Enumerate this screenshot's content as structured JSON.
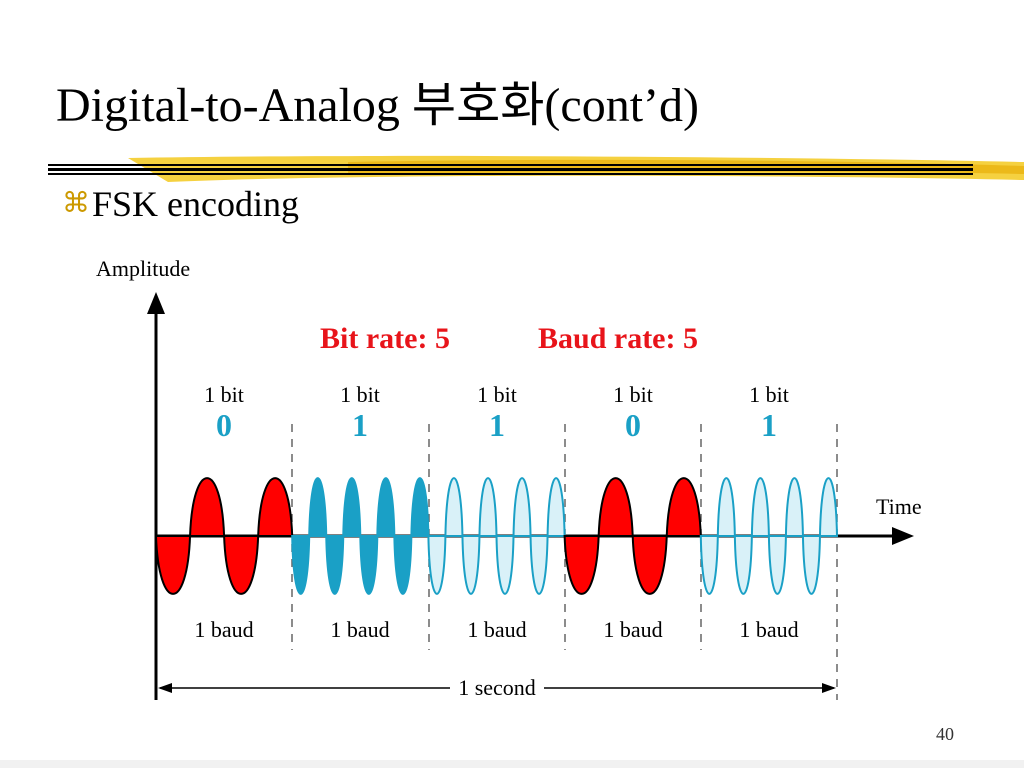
{
  "slide": {
    "title": "Digital-to-Analog 부호화(cont’d)",
    "bullet": "FSK encoding",
    "bullet_icon": "command-key-icon",
    "page_number": "40"
  },
  "diagram": {
    "y_axis_label": "Amplitude",
    "x_axis_label": "Time",
    "bit_rate_label": "Bit rate: 5",
    "baud_rate_label": "Baud rate: 5",
    "duration_label": "1 second",
    "bits": [
      {
        "bit_label": "1 bit",
        "value": "0",
        "baud_label": "1 baud"
      },
      {
        "bit_label": "1 bit",
        "value": "1",
        "baud_label": "1 baud"
      },
      {
        "bit_label": "1 bit",
        "value": "1",
        "baud_label": "1 baud"
      },
      {
        "bit_label": "1 bit",
        "value": "0",
        "baud_label": "1 baud"
      },
      {
        "bit_label": "1 bit",
        "value": "1",
        "baud_label": "1 baud"
      }
    ],
    "colors": {
      "rate_text": "#e8141a",
      "bit_value_text": "#1aa0c6",
      "zero_fill": "#ff0000",
      "one_fill_dark": "#1aa0c6",
      "one_fill_light": "#d9f1f8",
      "title_rule_accent": "#f2c200"
    }
  }
}
